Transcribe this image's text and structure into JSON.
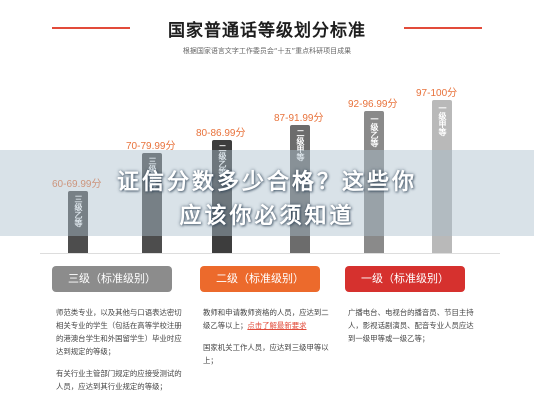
{
  "header": {
    "title": "国家普通话等级划分标准",
    "subtitle": "根据国家语言文字工作委员会“十五”重点科研项目成果"
  },
  "bars": [
    {
      "range": "60-69.99分",
      "label": "三级乙等",
      "color": "#4d4d4d",
      "score": 60
    },
    {
      "range": "70-79.99分",
      "label": "三级甲等",
      "color": "#4d4d4d",
      "score": 70
    },
    {
      "range": "80-86.99分",
      "label": "二级乙等",
      "color": "#3d3d3d",
      "score": 80
    },
    {
      "range": "87-91.99分",
      "label": "二级甲等",
      "color": "#6c6c6c",
      "score": 87
    },
    {
      "range": "92-96.99分",
      "label": "一级乙等",
      "color": "#8a8a8a",
      "score": 92
    },
    {
      "range": "97-100分",
      "label": "一级甲等",
      "color": "#b9b9b9",
      "score": 97
    }
  ],
  "banner": {
    "line1": "证信分数多少合格？这些你",
    "line2": "应该你必须知道"
  },
  "tiers": [
    {
      "button": "三级（标准级别）",
      "color": "#8c8c8c",
      "paragraphs": [
        "师范类专业，以及其他与口语表达密切相关专业的学生（包括在高等学校注册的港澳台学生和外国留学生）毕业时应达到规定的等级；",
        "有关行业主管部门规定的应接受测试的人员，应达到其行业规定的等级；"
      ]
    },
    {
      "button": "二级（标准级别）",
      "color": "#ec6a2c",
      "paragraphs": [
        "教师和申请教师资格的人员，应达到二级乙等以上；",
        "点击了解最新要求",
        "国家机关工作人员，应达到三级甲等以上；"
      ]
    },
    {
      "button": "一级（标准级别）",
      "color": "#d6312e",
      "paragraphs": [
        "广播电台、电视台的播音员、节目主持人，影视话剧演员、配音专业人员应达到一级甲等或一级乙等；"
      ]
    }
  ]
}
